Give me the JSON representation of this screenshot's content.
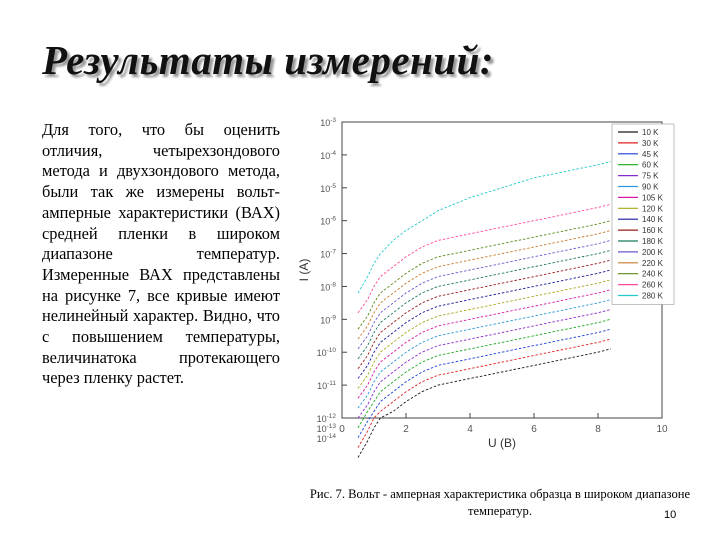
{
  "slide": {
    "title": "Результаты измерений:",
    "body": "Для того, что бы оценить отличия, четырехзондового метода и двухзондового метода, были так же измерены вольт-амперные характеристики (ВАХ) средней пленки в широком диапазоне температур. Измеренные ВАХ представлены на рисунке 7, все кривые имеют нелинейный характер. Видно, что с повышением температуры, величинатока протекающего через пленку растет.",
    "caption": "Рис. 7. Вольт - амперная характеристика образца в широком диапазоне температур.",
    "page_number": "10"
  },
  "chart_data": {
    "type": "line",
    "title": "",
    "xlabel": "U (B)",
    "ylabel": "I (A)",
    "xlim": [
      0,
      10
    ],
    "ylim": [
      -12,
      -3
    ],
    "y_scale": "log",
    "grid": false,
    "legend_position": "top-right",
    "x_ticks": [
      "0",
      "2",
      "4",
      "6",
      "8",
      "10"
    ],
    "y_ticks": [
      {
        "base": "10",
        "exp": "-3"
      },
      {
        "base": "10",
        "exp": "-4"
      },
      {
        "base": "10",
        "exp": "-5"
      },
      {
        "base": "10",
        "exp": "-6"
      },
      {
        "base": "10",
        "exp": "-7"
      },
      {
        "base": "10",
        "exp": "-8"
      },
      {
        "base": "10",
        "exp": "-9"
      },
      {
        "base": "10",
        "exp": "-10"
      },
      {
        "base": "10",
        "exp": "-11"
      },
      {
        "base": "10",
        "exp": "-12"
      },
      {
        "base": "10",
        "exp": "-13"
      },
      {
        "base": "10",
        "exp": "-14"
      }
    ],
    "x": [
      0.5,
      0.8,
      1.0,
      1.2,
      1.6,
      2.0,
      2.5,
      3.0,
      3.5,
      4.0,
      5.0,
      6.0,
      7.0,
      8.0,
      8.4
    ],
    "series": [
      {
        "name": "10 K",
        "color": "#1a1a1a",
        "values": [
          -13.2,
          -12.7,
          -12.3,
          -12.0,
          -11.8,
          -11.5,
          -11.2,
          -11.0,
          -10.9,
          -10.8,
          -10.6,
          -10.4,
          -10.2,
          -10.0,
          -9.9
        ]
      },
      {
        "name": "30 K",
        "color": "#e02020",
        "values": [
          -12.9,
          -12.4,
          -12.0,
          -11.8,
          -11.5,
          -11.2,
          -10.9,
          -10.7,
          -10.6,
          -10.5,
          -10.3,
          -10.1,
          -9.9,
          -9.7,
          -9.6
        ]
      },
      {
        "name": "45 K",
        "color": "#1a3fd8",
        "values": [
          -12.6,
          -12.1,
          -11.8,
          -11.5,
          -11.2,
          -10.9,
          -10.6,
          -10.4,
          -10.3,
          -10.2,
          -10.0,
          -9.8,
          -9.6,
          -9.4,
          -9.3
        ]
      },
      {
        "name": "60 K",
        "color": "#1aa81a",
        "values": [
          -12.3,
          -11.8,
          -11.5,
          -11.2,
          -10.9,
          -10.6,
          -10.3,
          -10.1,
          -10.0,
          -9.9,
          -9.7,
          -9.5,
          -9.3,
          -9.1,
          -9.0
        ]
      },
      {
        "name": "75 K",
        "color": "#8a2ad0",
        "values": [
          -12.0,
          -11.6,
          -11.2,
          -10.9,
          -10.6,
          -10.3,
          -10.0,
          -9.8,
          -9.7,
          -9.6,
          -9.4,
          -9.2,
          -9.0,
          -8.8,
          -8.7
        ]
      },
      {
        "name": "90 K",
        "color": "#2a9ad8",
        "values": [
          -11.7,
          -11.3,
          -10.9,
          -10.6,
          -10.3,
          -10.0,
          -9.7,
          -9.5,
          -9.4,
          -9.3,
          -9.1,
          -8.9,
          -8.7,
          -8.5,
          -8.4
        ]
      },
      {
        "name": "105 K",
        "color": "#d81aa8",
        "values": [
          -11.4,
          -11.0,
          -10.6,
          -10.3,
          -10.0,
          -9.7,
          -9.4,
          -9.2,
          -9.1,
          -9.0,
          -8.8,
          -8.6,
          -8.4,
          -8.2,
          -8.1
        ]
      },
      {
        "name": "120 K",
        "color": "#a8a81a",
        "values": [
          -11.1,
          -10.7,
          -10.3,
          -10.0,
          -9.7,
          -9.4,
          -9.1,
          -8.9,
          -8.8,
          -8.7,
          -8.5,
          -8.3,
          -8.1,
          -7.9,
          -7.8
        ]
      },
      {
        "name": "140 K",
        "color": "#1a1a9a",
        "values": [
          -10.8,
          -10.4,
          -10.0,
          -9.7,
          -9.4,
          -9.1,
          -8.8,
          -8.6,
          -8.5,
          -8.4,
          -8.2,
          -8.0,
          -7.8,
          -7.6,
          -7.5
        ]
      },
      {
        "name": "160 K",
        "color": "#9a1a1a",
        "values": [
          -10.5,
          -10.1,
          -9.7,
          -9.4,
          -9.1,
          -8.8,
          -8.5,
          -8.3,
          -8.2,
          -8.1,
          -7.9,
          -7.7,
          -7.5,
          -7.3,
          -7.2
        ]
      },
      {
        "name": "180 K",
        "color": "#1a7a5a",
        "values": [
          -10.2,
          -9.8,
          -9.4,
          -9.1,
          -8.8,
          -8.5,
          -8.2,
          -8.0,
          -7.9,
          -7.8,
          -7.6,
          -7.4,
          -7.2,
          -7.0,
          -6.9
        ]
      },
      {
        "name": "200 K",
        "color": "#6a5acd",
        "values": [
          -9.9,
          -9.5,
          -9.1,
          -8.8,
          -8.5,
          -8.2,
          -7.9,
          -7.7,
          -7.6,
          -7.5,
          -7.3,
          -7.1,
          -6.9,
          -6.7,
          -6.6
        ]
      },
      {
        "name": "220 K",
        "color": "#c87a2a",
        "values": [
          -9.6,
          -9.2,
          -8.8,
          -8.5,
          -8.2,
          -7.9,
          -7.6,
          -7.4,
          -7.3,
          -7.2,
          -7.0,
          -6.8,
          -6.6,
          -6.4,
          -6.3
        ]
      },
      {
        "name": "240 K",
        "color": "#5a8a1a",
        "values": [
          -9.3,
          -8.9,
          -8.5,
          -8.2,
          -7.9,
          -7.6,
          -7.3,
          -7.1,
          -7.0,
          -6.9,
          -6.7,
          -6.5,
          -6.3,
          -6.1,
          -6.0
        ]
      },
      {
        "name": "260 K",
        "color": "#ff4aa0",
        "values": [
          -8.8,
          -8.4,
          -8.0,
          -7.7,
          -7.4,
          -7.1,
          -6.8,
          -6.6,
          -6.5,
          -6.4,
          -6.2,
          -6.0,
          -5.8,
          -5.6,
          -5.5
        ]
      },
      {
        "name": "280 K",
        "color": "#20c8c8",
        "values": [
          -8.2,
          -7.7,
          -7.3,
          -7.0,
          -6.6,
          -6.3,
          -6.0,
          -5.7,
          -5.5,
          -5.3,
          -5.0,
          -4.7,
          -4.5,
          -4.3,
          -4.2
        ]
      }
    ]
  }
}
